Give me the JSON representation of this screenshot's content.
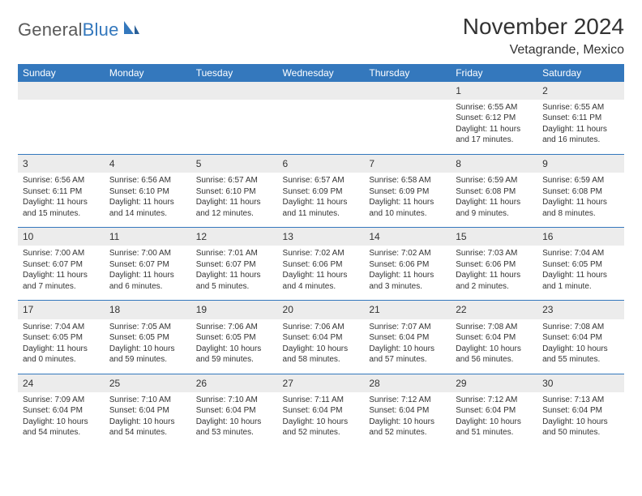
{
  "logo": {
    "text_gray": "General",
    "text_blue": "Blue"
  },
  "title": "November 2024",
  "location": "Vetagrande, Mexico",
  "weekdays": [
    "Sunday",
    "Monday",
    "Tuesday",
    "Wednesday",
    "Thursday",
    "Friday",
    "Saturday"
  ],
  "colors": {
    "header_bg": "#3478bd",
    "header_text": "#ffffff",
    "daynum_bg": "#ececec",
    "separator": "#3478bd",
    "body_text": "#333333",
    "logo_gray": "#5a5a5a",
    "logo_blue": "#3478bd"
  },
  "layout": {
    "first_weekday_index": 5,
    "num_days": 30
  },
  "days": {
    "1": {
      "sunrise": "6:55 AM",
      "sunset": "6:12 PM",
      "daylight": "11 hours and 17 minutes."
    },
    "2": {
      "sunrise": "6:55 AM",
      "sunset": "6:11 PM",
      "daylight": "11 hours and 16 minutes."
    },
    "3": {
      "sunrise": "6:56 AM",
      "sunset": "6:11 PM",
      "daylight": "11 hours and 15 minutes."
    },
    "4": {
      "sunrise": "6:56 AM",
      "sunset": "6:10 PM",
      "daylight": "11 hours and 14 minutes."
    },
    "5": {
      "sunrise": "6:57 AM",
      "sunset": "6:10 PM",
      "daylight": "11 hours and 12 minutes."
    },
    "6": {
      "sunrise": "6:57 AM",
      "sunset": "6:09 PM",
      "daylight": "11 hours and 11 minutes."
    },
    "7": {
      "sunrise": "6:58 AM",
      "sunset": "6:09 PM",
      "daylight": "11 hours and 10 minutes."
    },
    "8": {
      "sunrise": "6:59 AM",
      "sunset": "6:08 PM",
      "daylight": "11 hours and 9 minutes."
    },
    "9": {
      "sunrise": "6:59 AM",
      "sunset": "6:08 PM",
      "daylight": "11 hours and 8 minutes."
    },
    "10": {
      "sunrise": "7:00 AM",
      "sunset": "6:07 PM",
      "daylight": "11 hours and 7 minutes."
    },
    "11": {
      "sunrise": "7:00 AM",
      "sunset": "6:07 PM",
      "daylight": "11 hours and 6 minutes."
    },
    "12": {
      "sunrise": "7:01 AM",
      "sunset": "6:07 PM",
      "daylight": "11 hours and 5 minutes."
    },
    "13": {
      "sunrise": "7:02 AM",
      "sunset": "6:06 PM",
      "daylight": "11 hours and 4 minutes."
    },
    "14": {
      "sunrise": "7:02 AM",
      "sunset": "6:06 PM",
      "daylight": "11 hours and 3 minutes."
    },
    "15": {
      "sunrise": "7:03 AM",
      "sunset": "6:06 PM",
      "daylight": "11 hours and 2 minutes."
    },
    "16": {
      "sunrise": "7:04 AM",
      "sunset": "6:05 PM",
      "daylight": "11 hours and 1 minute."
    },
    "17": {
      "sunrise": "7:04 AM",
      "sunset": "6:05 PM",
      "daylight": "11 hours and 0 minutes."
    },
    "18": {
      "sunrise": "7:05 AM",
      "sunset": "6:05 PM",
      "daylight": "10 hours and 59 minutes."
    },
    "19": {
      "sunrise": "7:06 AM",
      "sunset": "6:05 PM",
      "daylight": "10 hours and 59 minutes."
    },
    "20": {
      "sunrise": "7:06 AM",
      "sunset": "6:04 PM",
      "daylight": "10 hours and 58 minutes."
    },
    "21": {
      "sunrise": "7:07 AM",
      "sunset": "6:04 PM",
      "daylight": "10 hours and 57 minutes."
    },
    "22": {
      "sunrise": "7:08 AM",
      "sunset": "6:04 PM",
      "daylight": "10 hours and 56 minutes."
    },
    "23": {
      "sunrise": "7:08 AM",
      "sunset": "6:04 PM",
      "daylight": "10 hours and 55 minutes."
    },
    "24": {
      "sunrise": "7:09 AM",
      "sunset": "6:04 PM",
      "daylight": "10 hours and 54 minutes."
    },
    "25": {
      "sunrise": "7:10 AM",
      "sunset": "6:04 PM",
      "daylight": "10 hours and 54 minutes."
    },
    "26": {
      "sunrise": "7:10 AM",
      "sunset": "6:04 PM",
      "daylight": "10 hours and 53 minutes."
    },
    "27": {
      "sunrise": "7:11 AM",
      "sunset": "6:04 PM",
      "daylight": "10 hours and 52 minutes."
    },
    "28": {
      "sunrise": "7:12 AM",
      "sunset": "6:04 PM",
      "daylight": "10 hours and 52 minutes."
    },
    "29": {
      "sunrise": "7:12 AM",
      "sunset": "6:04 PM",
      "daylight": "10 hours and 51 minutes."
    },
    "30": {
      "sunrise": "7:13 AM",
      "sunset": "6:04 PM",
      "daylight": "10 hours and 50 minutes."
    }
  },
  "labels": {
    "sunrise": "Sunrise: ",
    "sunset": "Sunset: ",
    "daylight": "Daylight: "
  }
}
